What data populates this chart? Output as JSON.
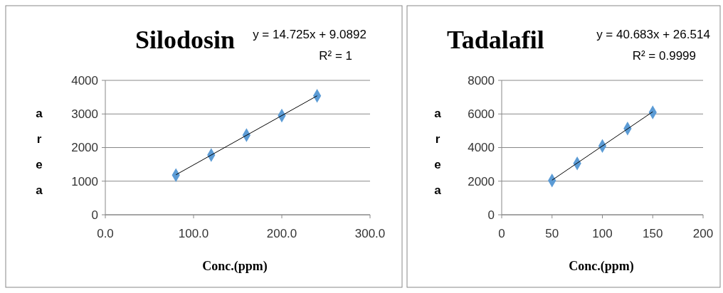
{
  "chart_data": [
    {
      "type": "scatter",
      "title": "Silodosin",
      "xlabel": "Conc.(ppm)",
      "ylabel": "area",
      "annotations": [
        "y = 14.725x + 9.0892",
        "R² = 1"
      ],
      "xlim": [
        0,
        300
      ],
      "xticks": [
        {
          "value": 0,
          "label": "0.0"
        },
        {
          "value": 100,
          "label": "100.0"
        },
        {
          "value": 200,
          "label": "200.0"
        },
        {
          "value": 300,
          "label": "300.0"
        }
      ],
      "ylim": [
        0,
        4000
      ],
      "yticks": [
        0,
        1000,
        2000,
        3000,
        4000
      ],
      "grid": "y",
      "series": [
        {
          "marker": "diamond",
          "color": "#5b9bd5",
          "x": [
            80,
            120,
            160,
            200,
            240
          ],
          "values": [
            1180,
            1780,
            2370,
            2950,
            3540
          ]
        },
        {
          "type": "line",
          "color": "#000000",
          "x": [
            80,
            240
          ],
          "values": [
            1190,
            3540
          ]
        }
      ]
    },
    {
      "type": "scatter",
      "title": "Tadalafil",
      "xlabel": "Conc.(ppm)",
      "ylabel": "area",
      "annotations": [
        "y = 40.683x + 26.514",
        "R² = 0.9999"
      ],
      "xlim": [
        0,
        200
      ],
      "xticks": [
        0,
        50,
        100,
        150,
        200
      ],
      "ylim": [
        0,
        8000
      ],
      "yticks": [
        0,
        2000,
        4000,
        6000,
        8000
      ],
      "grid": "y",
      "series": [
        {
          "marker": "diamond",
          "color": "#5b9bd5",
          "x": [
            50,
            75,
            100,
            125,
            150
          ],
          "values": [
            2040,
            3060,
            4100,
            5130,
            6100
          ]
        },
        {
          "type": "line",
          "color": "#000000",
          "x": [
            50,
            150
          ],
          "values": [
            2060,
            6130
          ]
        }
      ]
    }
  ]
}
